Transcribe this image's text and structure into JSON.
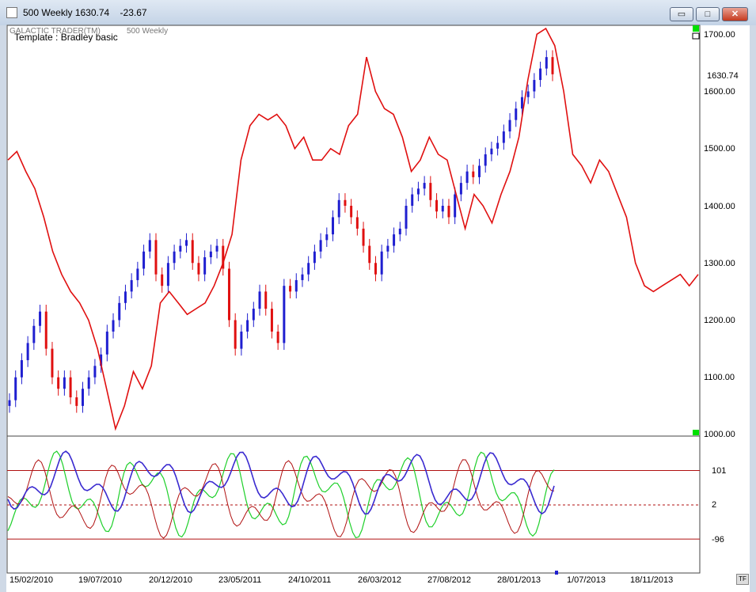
{
  "window": {
    "title": "500 Weekly 1630.74    -23.67",
    "minimize": "▭",
    "maximize": "□",
    "close": "✕"
  },
  "header": {
    "vendor_tag": "GALACTIC TRADER(TM)",
    "symbol_tag": "500 Weekly",
    "template_label": "Template : Bradley basic"
  },
  "last_price": "1630.74",
  "price_axis": [
    "1700.00",
    "1600.00",
    "1500.00",
    "1400.00",
    "1300.00",
    "1200.00",
    "1100.00",
    "1000.00"
  ],
  "osc_axis": [
    "101",
    "2",
    "-96"
  ],
  "date_axis": [
    "15/02/2010",
    "19/07/2010",
    "20/12/2010",
    "23/05/2011",
    "24/10/2011",
    "26/03/2012",
    "27/08/2012",
    "28/01/2013",
    "1/07/2013",
    "18/11/2013"
  ],
  "tf_button": "TF",
  "colors": {
    "up": "#1f1fd0",
    "down": "#e01010",
    "model": "#e01010",
    "osc_blue": "#3a2ad0",
    "osc_green": "#1ed02a",
    "osc_red": "#b01010",
    "marker": "#00e000"
  },
  "chart_data": {
    "type": "line",
    "price_series": {
      "x_start": "15/02/2010",
      "x_end": "18/11/2013",
      "ylim": [
        1000,
        1720
      ],
      "close": [
        1060,
        1100,
        1130,
        1160,
        1190,
        1215,
        1150,
        1100,
        1080,
        1100,
        1065,
        1050,
        1080,
        1100,
        1120,
        1140,
        1180,
        1200,
        1230,
        1250,
        1270,
        1290,
        1320,
        1340,
        1280,
        1260,
        1300,
        1320,
        1330,
        1340,
        1300,
        1280,
        1310,
        1320,
        1330,
        1290,
        1200,
        1150,
        1180,
        1200,
        1220,
        1250,
        1220,
        1180,
        1160,
        1260,
        1250,
        1270,
        1280,
        1300,
        1320,
        1340,
        1350,
        1380,
        1410,
        1400,
        1380,
        1360,
        1330,
        1300,
        1280,
        1320,
        1330,
        1350,
        1360,
        1400,
        1420,
        1430,
        1440,
        1410,
        1390,
        1400,
        1380,
        1420,
        1440,
        1460,
        1450,
        1470,
        1490,
        1500,
        1510,
        1530,
        1550,
        1570,
        1590,
        1600,
        1620,
        1640,
        1660,
        1630
      ]
    },
    "model_series": {
      "name": "Bradley basic",
      "values": [
        1480,
        1495,
        1460,
        1430,
        1380,
        1320,
        1280,
        1250,
        1230,
        1200,
        1150,
        1080,
        1010,
        1050,
        1110,
        1080,
        1120,
        1230,
        1250,
        1230,
        1210,
        1220,
        1230,
        1260,
        1300,
        1350,
        1480,
        1540,
        1560,
        1550,
        1560,
        1540,
        1500,
        1520,
        1480,
        1480,
        1500,
        1490,
        1540,
        1560,
        1660,
        1600,
        1570,
        1560,
        1520,
        1460,
        1480,
        1520,
        1490,
        1480,
        1420,
        1360,
        1420,
        1400,
        1370,
        1420,
        1460,
        1520,
        1620,
        1700,
        1710,
        1680,
        1600,
        1490,
        1470,
        1440,
        1480,
        1460,
        1420,
        1380,
        1300,
        1260,
        1250,
        1260,
        1270,
        1280,
        1260,
        1280
      ]
    },
    "oscillator": {
      "levels": [
        101,
        2,
        -96
      ]
    }
  }
}
